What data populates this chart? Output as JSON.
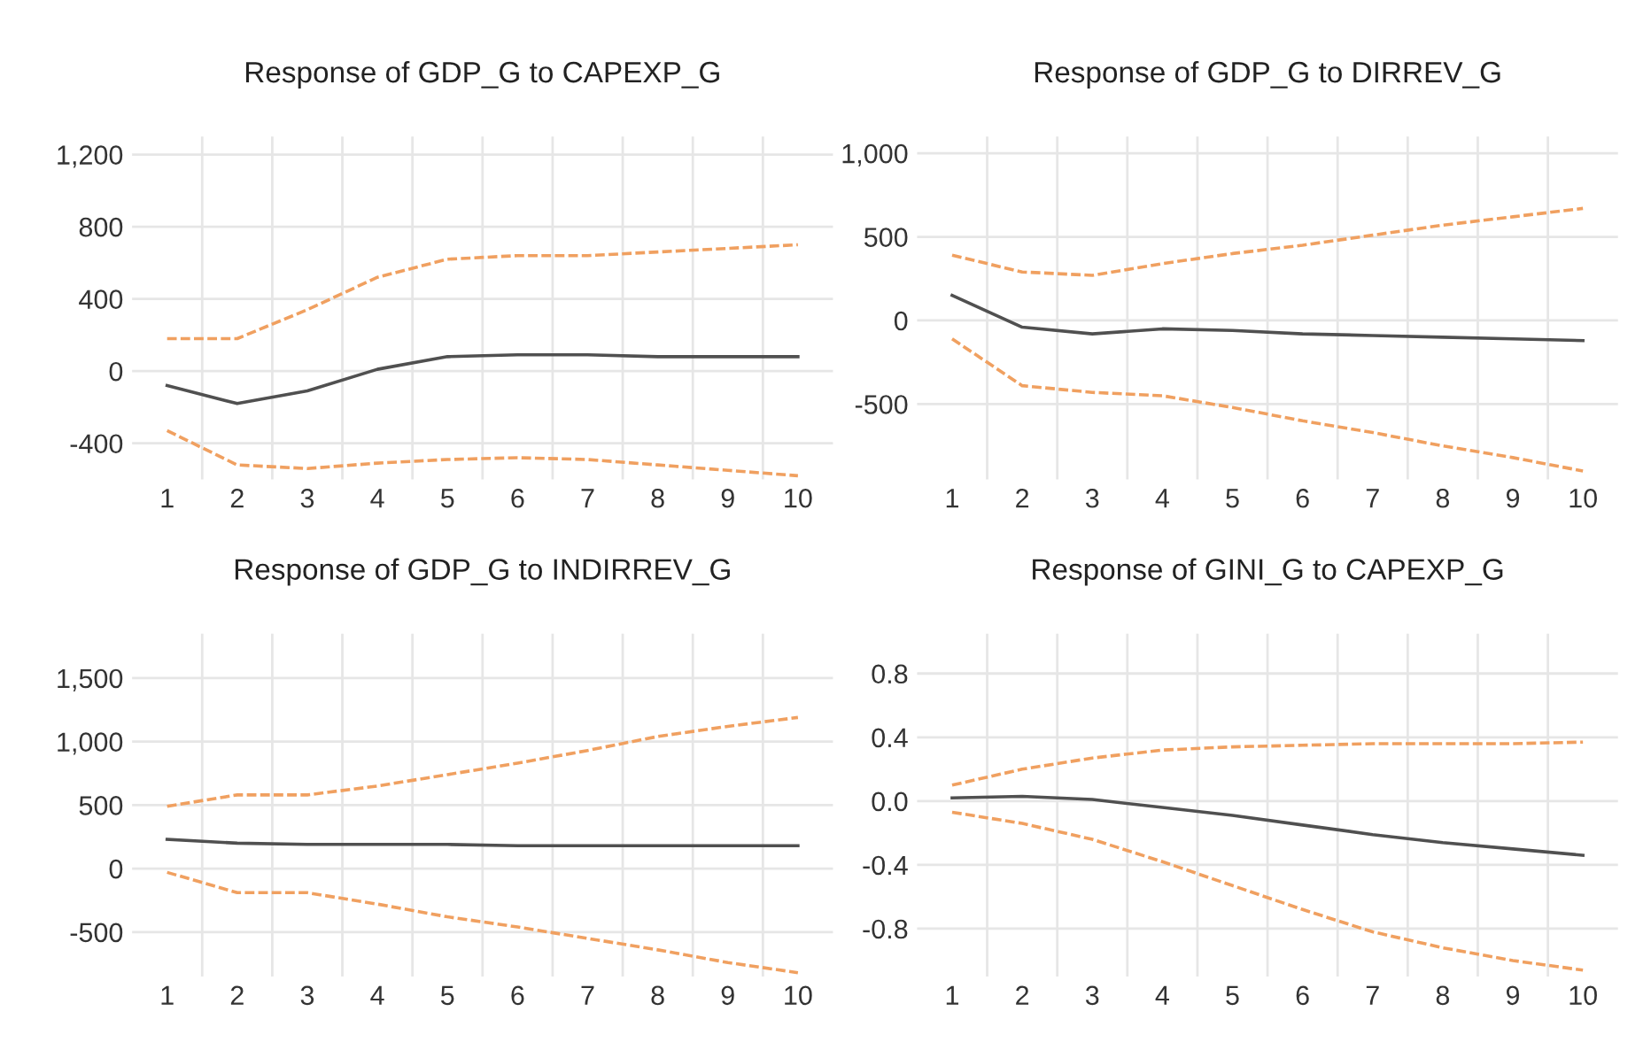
{
  "chart_data": [
    {
      "type": "line",
      "title": "Response of GDP_G to CAPEXP_G",
      "categories": [
        "1",
        "2",
        "3",
        "4",
        "5",
        "6",
        "7",
        "8",
        "9",
        "10"
      ],
      "ylim": [
        -600,
        1300
      ],
      "yticks": [
        -400,
        0,
        400,
        800,
        {
          "value": 1200,
          "label": "1,200"
        }
      ],
      "grid": true,
      "series": [
        {
          "color": "#505050",
          "line_style": "solid",
          "values": [
            -80,
            -180,
            -110,
            10,
            80,
            90,
            90,
            80,
            80,
            80
          ]
        },
        {
          "color": "#f0a060",
          "line_style": "dashed",
          "values": [
            180,
            180,
            340,
            520,
            620,
            640,
            640,
            660,
            680,
            700
          ]
        },
        {
          "color": "#f0a060",
          "line_style": "dashed",
          "values": [
            -330,
            -520,
            -540,
            -510,
            -490,
            -480,
            -490,
            -520,
            -550,
            -580
          ]
        }
      ]
    },
    {
      "type": "line",
      "title": "Response of GDP_G to DIRREV_G",
      "categories": [
        "1",
        "2",
        "3",
        "4",
        "5",
        "6",
        "7",
        "8",
        "9",
        "10"
      ],
      "ylim": [
        -950,
        1100
      ],
      "yticks": [
        -500,
        0,
        500,
        {
          "value": 1000,
          "label": "1,000"
        }
      ],
      "grid": true,
      "series": [
        {
          "color": "#505050",
          "line_style": "solid",
          "values": [
            150,
            -40,
            -80,
            -50,
            -60,
            -80,
            -90,
            -100,
            -110,
            -120
          ]
        },
        {
          "color": "#f0a060",
          "line_style": "dashed",
          "values": [
            390,
            290,
            270,
            340,
            400,
            450,
            510,
            570,
            620,
            670
          ]
        },
        {
          "color": "#f0a060",
          "line_style": "dashed",
          "values": [
            -110,
            -390,
            -430,
            -450,
            -520,
            -600,
            -670,
            -750,
            -820,
            -900
          ]
        }
      ]
    },
    {
      "type": "line",
      "title": "Response of GDP_G to INDIRREV_G",
      "categories": [
        "1",
        "2",
        "3",
        "4",
        "5",
        "6",
        "7",
        "8",
        "9",
        "10"
      ],
      "ylim": [
        -850,
        1850
      ],
      "yticks": [
        -500,
        0,
        500,
        {
          "value": 1000,
          "label": "1,000"
        },
        {
          "value": 1500,
          "label": "1,500"
        }
      ],
      "grid": true,
      "series": [
        {
          "color": "#505050",
          "line_style": "solid",
          "values": [
            230,
            200,
            190,
            190,
            190,
            180,
            180,
            180,
            180,
            180
          ]
        },
        {
          "color": "#f0a060",
          "line_style": "dashed",
          "values": [
            490,
            580,
            580,
            650,
            740,
            830,
            930,
            1040,
            1120,
            1190
          ]
        },
        {
          "color": "#f0a060",
          "line_style": "dashed",
          "values": [
            -30,
            -190,
            -190,
            -280,
            -380,
            -460,
            -550,
            -640,
            -740,
            -820
          ]
        }
      ]
    },
    {
      "type": "line",
      "title": "Response of GINI_G to CAPEXP_G",
      "categories": [
        "1",
        "2",
        "3",
        "4",
        "5",
        "6",
        "7",
        "8",
        "9",
        "10"
      ],
      "ylim": [
        -1.1,
        1.05
      ],
      "yticks": [
        -0.8,
        -0.4,
        {
          "value": 0,
          "label": "0.0"
        },
        0.4,
        0.8
      ],
      "grid": true,
      "series": [
        {
          "color": "#505050",
          "line_style": "solid",
          "values": [
            0.02,
            0.03,
            0.01,
            -0.04,
            -0.09,
            -0.15,
            -0.21,
            -0.26,
            -0.3,
            -0.34
          ]
        },
        {
          "color": "#f0a060",
          "line_style": "dashed",
          "values": [
            0.1,
            0.2,
            0.27,
            0.32,
            0.34,
            0.35,
            0.36,
            0.36,
            0.36,
            0.37
          ]
        },
        {
          "color": "#f0a060",
          "line_style": "dashed",
          "values": [
            -0.07,
            -0.14,
            -0.24,
            -0.38,
            -0.53,
            -0.68,
            -0.82,
            -0.92,
            -1.0,
            -1.06
          ]
        }
      ]
    }
  ]
}
